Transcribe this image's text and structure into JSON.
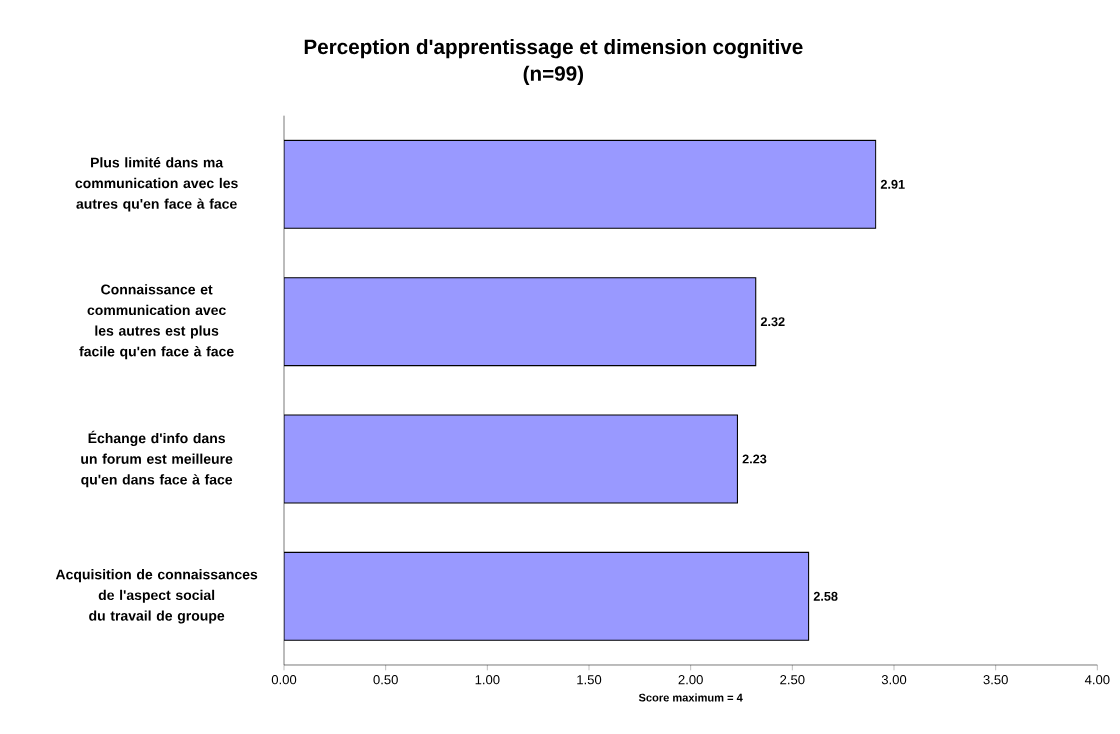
{
  "chart_data": {
    "type": "bar",
    "orientation": "horizontal",
    "title": "Perception d'apprentissage et dimension cognitive",
    "subtitle": "(n=99)",
    "xlabel": "Score maximum = 4",
    "categories": [
      "Plus limité dans ma communication avec les autres qu'en face à face",
      "Connaissance et communication avec les autres est plus facile qu'en face à face",
      "Échange d'info dans un forum est meilleure qu'en dans face à face",
      "Acquisition de connaissances de l'aspect social du travail de groupe"
    ],
    "values": [
      2.91,
      2.32,
      2.23,
      2.58
    ],
    "color": "#9999ff",
    "data_labels": true,
    "xlim": [
      0,
      4
    ],
    "xticks": [
      {
        "value": 0,
        "label": "0.00"
      },
      {
        "value": 0.5,
        "label": "0.50"
      },
      {
        "value": 1,
        "label": "1.00"
      },
      {
        "value": 1.5,
        "label": "1.50"
      },
      {
        "value": 2,
        "label": "2.00"
      },
      {
        "value": 2.5,
        "label": "2.50"
      },
      {
        "value": 3,
        "label": "3.00"
      },
      {
        "value": 3.5,
        "label": "3.50"
      },
      {
        "value": 4,
        "label": "4.00"
      }
    ]
  }
}
